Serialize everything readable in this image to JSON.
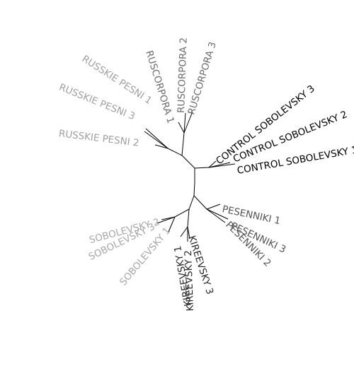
{
  "groups": [
    {
      "id": "russkie",
      "color": "#a0a0a0",
      "labels": [
        "RUSSKIE PESNI 1",
        "RUSSKIE PESNI 3",
        "RUSSKIE PESNI 2"
      ]
    },
    {
      "id": "ruscorpora",
      "color": "#6e6e6e",
      "labels": [
        "RUSCORPORA 1",
        "RUSCORPORA 2",
        "RUSCORPORA 3"
      ]
    },
    {
      "id": "control",
      "color": "#000000",
      "labels": [
        "CONTROL SOBOLEVSKY 3",
        "CONTROL SOBOLEVSKY 2",
        "CONTROL SOBOLEVSKY 1"
      ]
    },
    {
      "id": "pesenniki",
      "color": "#555555",
      "labels": [
        "PESENNIKI 1",
        "PESENNIKI 3",
        "PESENNIKI 2"
      ]
    },
    {
      "id": "kireevsky",
      "color": "#2a2a2a",
      "labels": [
        "KIREEVSKY 1",
        "KIREEVSKY 2",
        "KIREEVSKY 3"
      ]
    },
    {
      "id": "sobolevsky",
      "color": "#a8a8a8",
      "labels": [
        "SOBOLEVSKY 2",
        "SOBOLEVSKY 3",
        "SOBOLEVSKY 1"
      ]
    }
  ]
}
